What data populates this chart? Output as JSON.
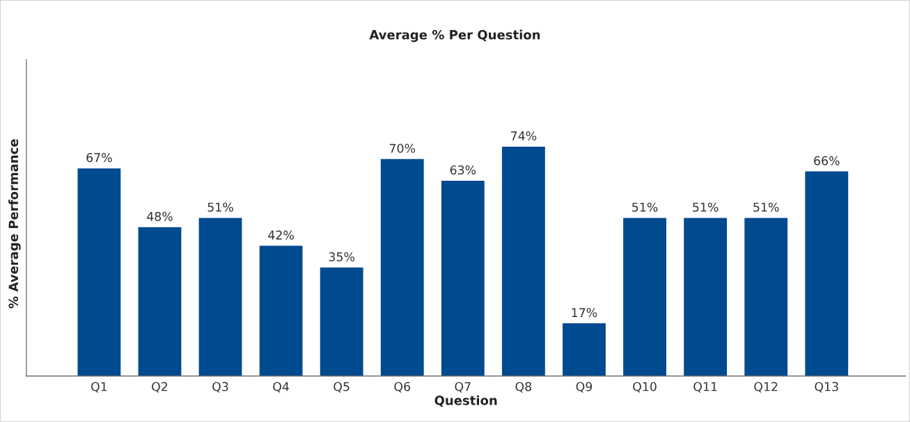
{
  "chart_data": {
    "type": "bar",
    "title": "Average % Per Question",
    "xlabel": "Question",
    "ylabel": "% Average Performance",
    "categories": [
      "Q1",
      "Q2",
      "Q3",
      "Q4",
      "Q5",
      "Q6",
      "Q7",
      "Q8",
      "Q9",
      "Q10",
      "Q11",
      "Q12",
      "Q13"
    ],
    "values": [
      67,
      48,
      51,
      42,
      35,
      70,
      63,
      74,
      17,
      51,
      51,
      51,
      66
    ],
    "value_labels": [
      "67%",
      "48%",
      "51%",
      "42%",
      "35%",
      "70%",
      "63%",
      "74%",
      "17%",
      "51%",
      "51%",
      "51%",
      "66%"
    ],
    "color": "#004a8f",
    "tick_labels": "x",
    "grid": false,
    "legend": false
  }
}
